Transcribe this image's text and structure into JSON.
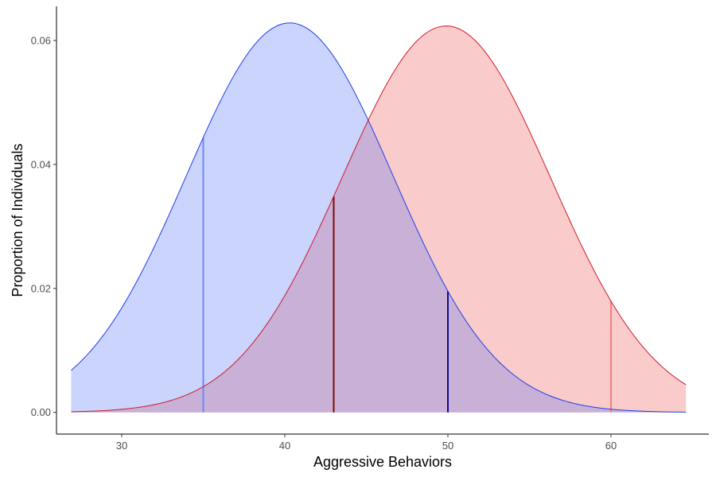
{
  "chart_data": {
    "type": "area",
    "xlabel": "Aggressive Behaviors",
    "ylabel": "Proportion of Individuals",
    "xlim": [
      26,
      66
    ],
    "ylim": [
      -0.0035,
      0.0655
    ],
    "xticks": [
      30,
      40,
      50,
      60
    ],
    "yticks": [
      0.0,
      0.02,
      0.04,
      0.06
    ],
    "ytick_labels": [
      "0.00",
      "0.02",
      "0.04",
      "0.06"
    ],
    "grid": false,
    "legend": "none",
    "series": [
      {
        "distribution": "normal",
        "mean": 40.3,
        "sd": 6.35,
        "x_range": [
          26.9,
          64.6
        ],
        "fill": "#cad4fc",
        "stroke": "#1f3fe6",
        "markers": [
          {
            "x": 35,
            "color": "#6d87ff"
          },
          {
            "x": 50,
            "color": "#0c0c8e"
          }
        ]
      },
      {
        "distribution": "normal",
        "mean": 49.9,
        "sd": 6.4,
        "x_range": [
          26.9,
          64.6
        ],
        "fill": "#f9cccb",
        "stroke": "#d11a2a",
        "markers": [
          {
            "x": 43,
            "color": "#7a0a0a"
          },
          {
            "x": 60,
            "color": "#f08080"
          }
        ]
      }
    ],
    "overlap_fill": "#c8b0d6"
  }
}
